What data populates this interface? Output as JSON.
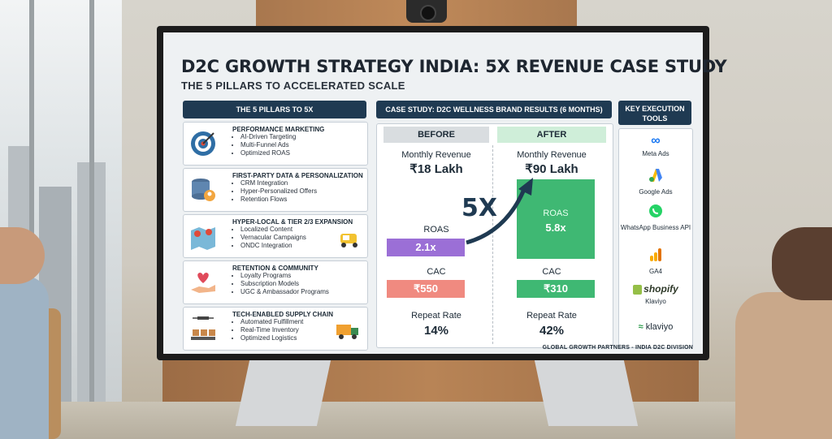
{
  "slide": {
    "title": "D2C GROWTH STRATEGY INDIA: 5X REVENUE CASE STUDY",
    "subtitle": "THE 5 PILLARS TO ACCELERATED SCALE",
    "footer": "GLOBAL GROWTH PARTNERS - INDIA D2C DIVISION"
  },
  "pillars": {
    "header": "THE 5 PILLARS TO 5X",
    "items": [
      {
        "title": "PERFORMANCE MARKETING",
        "icon": "target-icon",
        "bullets": [
          "AI-Driven Targeting",
          "Multi-Funnel Ads",
          "Optimized ROAS"
        ]
      },
      {
        "title": "FIRST-PARTY DATA & PERSONALIZATION",
        "icon": "database-user-icon",
        "bullets": [
          "CRM Integration",
          "Hyper-Personalized Offers",
          "Retention Flows"
        ]
      },
      {
        "title": "HYPER-LOCAL & TIER 2/3 EXPANSION",
        "icon": "map-pin-icon",
        "bullets": [
          "Localized Content",
          "Vernacular Campaigns",
          "ONDC Integration"
        ]
      },
      {
        "title": "RETENTION & COMMUNITY",
        "icon": "heart-hand-icon",
        "bullets": [
          "Loyalty Programs",
          "Subscription Models",
          "UGC & Ambassador Programs"
        ]
      },
      {
        "title": "TECH-ENABLED SUPPLY CHAIN",
        "icon": "drone-conveyor-icon",
        "bullets": [
          "Automated Fulfillment",
          "Real-Time Inventory",
          "Optimized Logistics"
        ]
      }
    ]
  },
  "case_study": {
    "header": "CASE STUDY: D2C WELLNESS BRAND RESULTS (6 MONTHS)",
    "before_label": "BEFORE",
    "after_label": "AFTER",
    "multiplier": "5X",
    "metrics": {
      "revenue_label": "Monthly Revenue",
      "revenue_before": "₹18 Lakh",
      "revenue_after": "₹90 Lakh",
      "roas_label": "ROAS",
      "roas_before": "2.1x",
      "roas_after": "5.8x",
      "cac_label": "CAC",
      "cac_before": "₹550",
      "cac_after": "₹310",
      "repeat_label": "Repeat Rate",
      "repeat_before": "14%",
      "repeat_after": "42%"
    }
  },
  "tools": {
    "header": "KEY EXECUTION TOOLS",
    "items": [
      {
        "label": "Meta Ads",
        "icon": "meta-icon"
      },
      {
        "label": "Google Ads",
        "icon": "google-ads-icon"
      },
      {
        "label": "WhatsApp Business API",
        "icon": "whatsapp-icon"
      },
      {
        "label": "GA4",
        "icon": "ga4-icon"
      },
      {
        "label": "Klaviyo",
        "brand": "shopify",
        "icon": "shopify-icon"
      },
      {
        "label": "klaviyo",
        "icon": "klaviyo-icon"
      }
    ]
  },
  "colors": {
    "navy": "#1f3a52",
    "purple": "#9b6fd6",
    "salmon": "#f08a80",
    "green": "#3fb873",
    "before_bg": "#d9dde0",
    "after_bg": "#cfeed9"
  }
}
